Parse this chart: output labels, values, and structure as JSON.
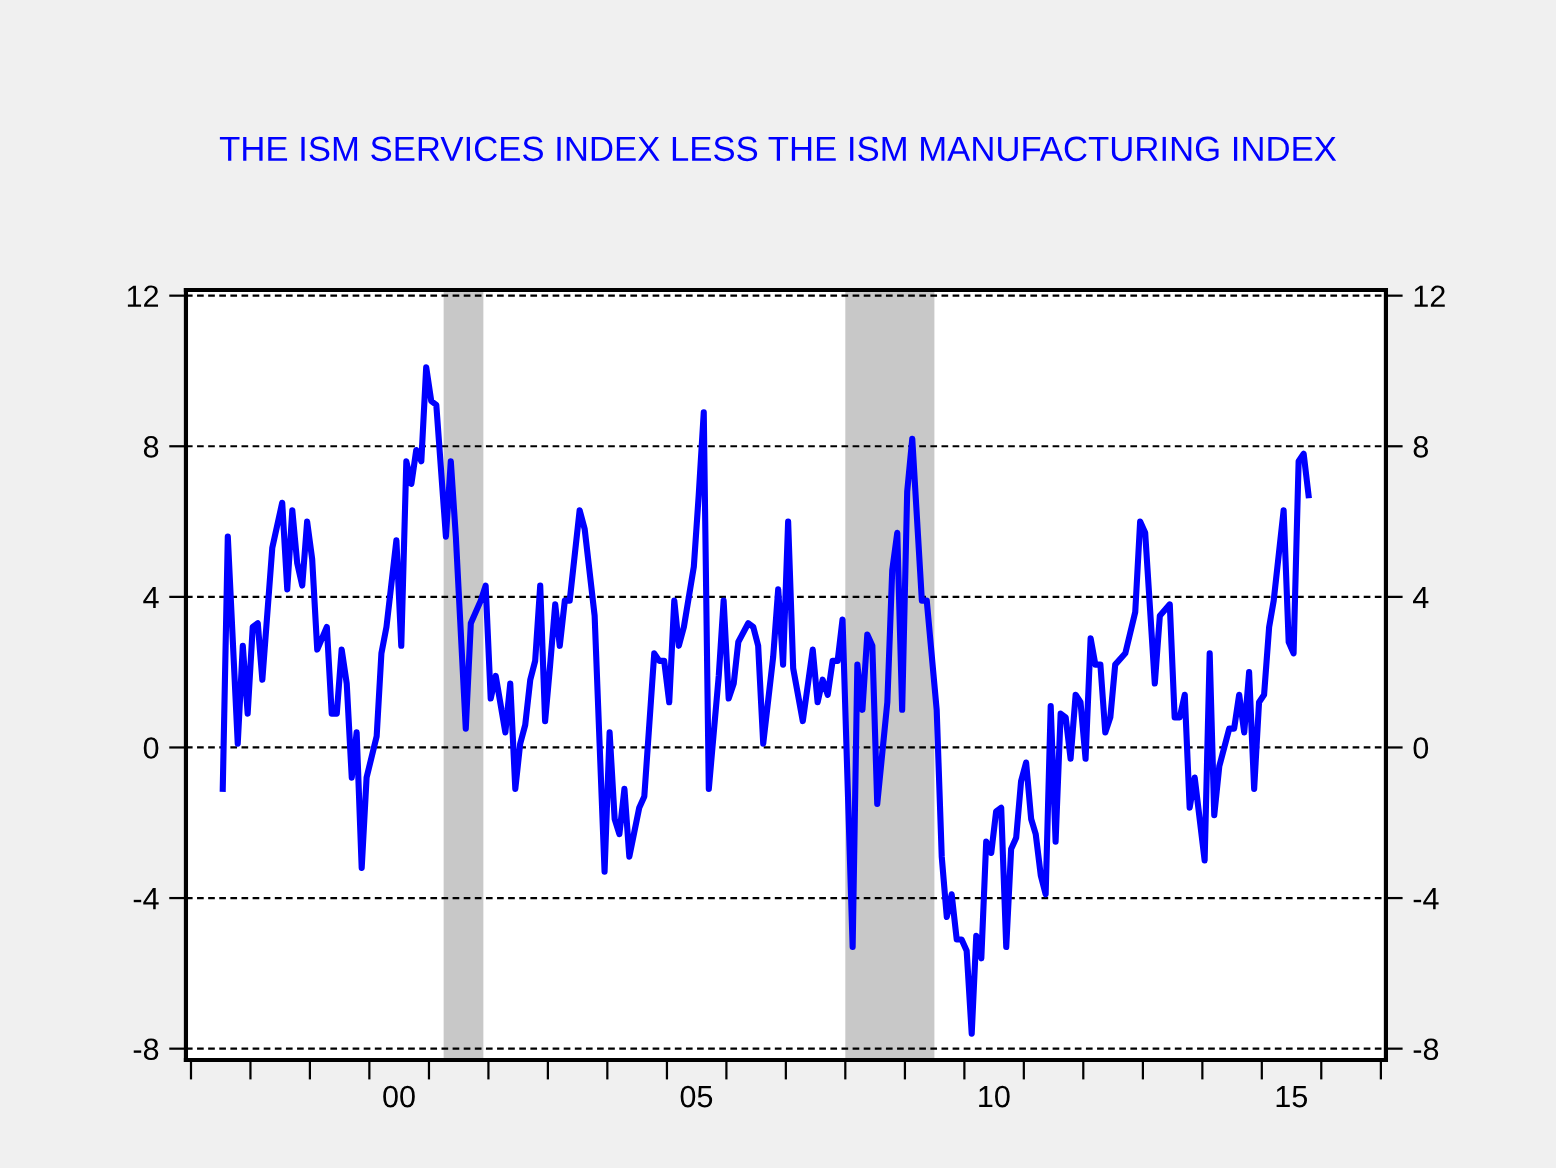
{
  "chart_data": {
    "type": "line",
    "title": "THE ISM SERVICES INDEX LESS THE ISM MANUFACTURING INDEX",
    "x": [
      "1997-07",
      "1997-08",
      "1997-10",
      "1997-11",
      "1997-12",
      "1998-01",
      "1998-02",
      "1998-03",
      "1998-05",
      "1998-07",
      "1998-08",
      "1998-09",
      "1998-10",
      "1998-11",
      "1998-12",
      "1999-01",
      "1999-02",
      "1999-04",
      "1999-05",
      "1999-06",
      "1999-07",
      "1999-08",
      "1999-09",
      "1999-10",
      "1999-11",
      "1999-12",
      "2000-02",
      "2000-03",
      "2000-04",
      "2000-06",
      "2000-07",
      "2000-08",
      "2000-09",
      "2000-10",
      "2000-11",
      "2000-12",
      "2001-01",
      "2001-02",
      "2001-04",
      "2001-05",
      "2001-06",
      "2001-08",
      "2001-09",
      "2001-11",
      "2001-12",
      "2002-01",
      "2002-02",
      "2002-04",
      "2002-05",
      "2002-06",
      "2002-07",
      "2002-08",
      "2002-09",
      "2002-10",
      "2002-11",
      "2002-12",
      "2003-01",
      "2003-02",
      "2003-03",
      "2003-04",
      "2003-05",
      "2003-07",
      "2003-08",
      "2003-10",
      "2003-12",
      "2004-01",
      "2004-02",
      "2004-03",
      "2004-04",
      "2004-05",
      "2004-07",
      "2004-08",
      "2004-10",
      "2004-11",
      "2004-12",
      "2005-01",
      "2005-02",
      "2005-03",
      "2005-04",
      "2005-06",
      "2005-07",
      "2005-08",
      "2005-09",
      "2005-11",
      "2005-12",
      "2006-01",
      "2006-02",
      "2006-03",
      "2006-05",
      "2006-06",
      "2006-07",
      "2006-08",
      "2006-10",
      "2006-11",
      "2006-12",
      "2007-01",
      "2007-02",
      "2007-04",
      "2007-06",
      "2007-07",
      "2007-08",
      "2007-09",
      "2007-10",
      "2007-11",
      "2007-12",
      "2008-02",
      "2008-03",
      "2008-04",
      "2008-05",
      "2008-06",
      "2008-07",
      "2008-09",
      "2008-10",
      "2008-11",
      "2008-12",
      "2009-01",
      "2009-02",
      "2009-04",
      "2009-05",
      "2009-07",
      "2009-08",
      "2009-09",
      "2009-10",
      "2009-11",
      "2009-12",
      "2010-01",
      "2010-02",
      "2010-03",
      "2010-04",
      "2010-05",
      "2010-06",
      "2010-07",
      "2010-08",
      "2010-09",
      "2010-10",
      "2010-11",
      "2010-12",
      "2011-01",
      "2011-02",
      "2011-03",
      "2011-04",
      "2011-05",
      "2011-06",
      "2011-07",
      "2011-08",
      "2011-09",
      "2011-10",
      "2011-11",
      "2011-12",
      "2012-01",
      "2012-02",
      "2012-03",
      "2012-04",
      "2012-05",
      "2012-06",
      "2012-07",
      "2012-09",
      "2012-11",
      "2012-12",
      "2013-01",
      "2013-03",
      "2013-04",
      "2013-06",
      "2013-07",
      "2013-08",
      "2013-09",
      "2013-10",
      "2013-11",
      "2014-01",
      "2014-02",
      "2014-03",
      "2014-04",
      "2014-06",
      "2014-07",
      "2014-08",
      "2014-09",
      "2014-10",
      "2014-11",
      "2014-12",
      "2015-01",
      "2015-02",
      "2015-03",
      "2015-05",
      "2015-06",
      "2015-07",
      "2015-08",
      "2015-09",
      "2015-10"
    ],
    "series": [
      {
        "color": "#0000ff",
        "values": [
          -1.1,
          5.6,
          0.1,
          2.7,
          0.9,
          3.2,
          3.3,
          1.8,
          5.3,
          6.5,
          4.2,
          6.3,
          4.9,
          4.3,
          6.0,
          5.0,
          2.6,
          3.2,
          0.9,
          0.9,
          2.6,
          1.7,
          -0.8,
          0.4,
          -3.2,
          -0.8,
          0.3,
          2.5,
          3.2,
          5.5,
          2.7,
          7.6,
          7.0,
          7.9,
          7.6,
          10.1,
          9.2,
          9.1,
          5.6,
          7.6,
          5.6,
          0.5,
          3.3,
          3.9,
          4.3,
          1.3,
          1.9,
          0.4,
          1.7,
          -1.1,
          0.1,
          0.6,
          1.8,
          2.3,
          4.3,
          0.7,
          2.2,
          3.8,
          2.7,
          3.9,
          3.9,
          6.3,
          5.8,
          3.5,
          -3.3,
          0.4,
          -1.9,
          -2.3,
          -1.1,
          -2.9,
          -1.6,
          -1.3,
          2.5,
          2.3,
          2.3,
          1.2,
          3.9,
          2.7,
          3.2,
          4.8,
          6.7,
          8.9,
          -1.1,
          1.9,
          3.9,
          1.3,
          1.7,
          2.8,
          3.3,
          3.2,
          2.7,
          0.1,
          2.4,
          4.2,
          2.2,
          6.0,
          2.1,
          0.7,
          2.6,
          1.2,
          1.8,
          1.4,
          2.3,
          2.3,
          3.4,
          -5.3,
          2.2,
          1.0,
          3.0,
          2.7,
          -1.5,
          1.2,
          4.7,
          5.7,
          1.0,
          6.8,
          8.2,
          3.9,
          3.9,
          1.0,
          -2.9,
          -4.5,
          -3.9,
          -5.1,
          -5.1,
          -5.4,
          -7.6,
          -5.0,
          -5.6,
          -2.5,
          -2.8,
          -1.7,
          -1.6,
          -5.3,
          -2.7,
          -2.4,
          -0.9,
          -0.4,
          -1.9,
          -2.3,
          -3.4,
          -3.9,
          1.1,
          -2.5,
          0.9,
          0.8,
          -0.3,
          1.4,
          1.2,
          -0.3,
          2.9,
          2.2,
          2.2,
          0.4,
          0.8,
          2.2,
          2.5,
          3.6,
          6.0,
          5.7,
          1.7,
          3.5,
          3.8,
          0.8,
          0.8,
          1.4,
          -1.6,
          -0.8,
          -3.0,
          2.5,
          -1.8,
          -0.5,
          0.5,
          0.5,
          1.4,
          0.4,
          2.0,
          -1.1,
          1.2,
          1.4,
          3.2,
          3.9,
          6.3,
          2.8,
          2.5,
          7.6,
          7.8,
          6.7
        ]
      }
    ],
    "xlim": [
      "1996-12",
      "2017-02"
    ],
    "xticks": [
      {
        "value": "1997-01",
        "label": null
      },
      {
        "value": "1998-01",
        "label": null
      },
      {
        "value": "1999-01",
        "label": null
      },
      {
        "value": "2000-01",
        "label": null
      },
      {
        "value": "2000-07",
        "label": "00"
      },
      {
        "value": "2001-01",
        "label": null
      },
      {
        "value": "2002-01",
        "label": null
      },
      {
        "value": "2003-01",
        "label": null
      },
      {
        "value": "2004-01",
        "label": null
      },
      {
        "value": "2005-01",
        "label": null
      },
      {
        "value": "2005-07",
        "label": "05"
      },
      {
        "value": "2006-01",
        "label": null
      },
      {
        "value": "2007-01",
        "label": null
      },
      {
        "value": "2008-01",
        "label": null
      },
      {
        "value": "2009-01",
        "label": null
      },
      {
        "value": "2010-01",
        "label": null
      },
      {
        "value": "2010-07",
        "label": "10"
      },
      {
        "value": "2011-01",
        "label": null
      },
      {
        "value": "2012-01",
        "label": null
      },
      {
        "value": "2013-01",
        "label": null
      },
      {
        "value": "2014-01",
        "label": null
      },
      {
        "value": "2015-01",
        "label": null
      },
      {
        "value": "2015-07",
        "label": "15"
      },
      {
        "value": "2016-01",
        "label": null
      },
      {
        "value": "2017-01",
        "label": null
      }
    ],
    "ylim": [
      -8.3,
      12.15
    ],
    "yticks": [
      -8,
      -4,
      0,
      4,
      8,
      12
    ],
    "y2lim": [
      -8.3,
      12.15
    ],
    "y2ticks": [
      -8,
      -4,
      0,
      4,
      8,
      12
    ],
    "grid": "y",
    "line_style": "solid",
    "bands": [
      {
        "axis": "x",
        "from": "2001-04",
        "to": "2001-12",
        "color": "#c8c8c8"
      },
      {
        "axis": "x",
        "from": "2008-01",
        "to": "2009-07",
        "color": "#c8c8c8"
      }
    ]
  }
}
